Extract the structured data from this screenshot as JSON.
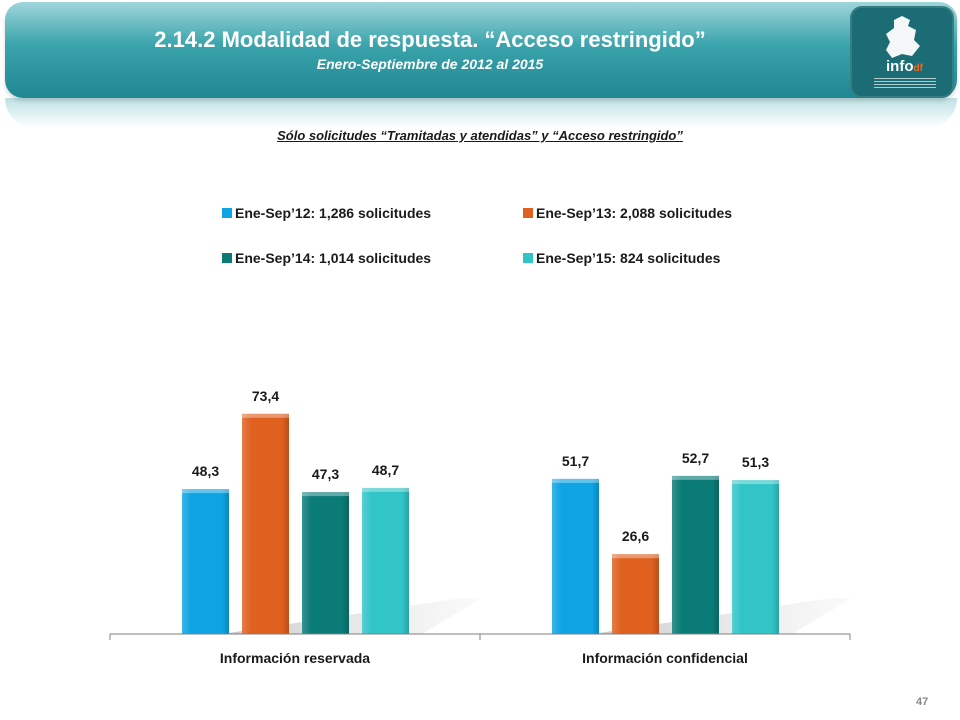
{
  "header": {
    "title": "2.14.2 Modalidad de respuesta. “Acceso restringido”",
    "subtitle": "Enero-Septiembre de 2012 al 2015",
    "logo_text": "info",
    "logo_suffix": "df"
  },
  "chart_subtitle": "Sólo solicitudes “Tramitadas y atendidas” y “Acceso restringido”",
  "legend": [
    {
      "name": "Ene-Sep’12:",
      "value": "1,286 solicitudes",
      "color": "#0ea4e4"
    },
    {
      "name": "Ene-Sep’13:",
      "value": "2,088 solicitudes",
      "color": "#e0601f"
    },
    {
      "name": "Ene-Sep’14:",
      "value": "1,014 solicitudes",
      "color": "#0b7b77"
    },
    {
      "name": "Ene-Sep’15:",
      "value": "824 solicitudes",
      "color": "#32c5c8"
    }
  ],
  "chart_data": {
    "type": "bar",
    "categories": [
      "Información reservada",
      "Información confidencial"
    ],
    "series": [
      {
        "name": "Ene-Sep’12: 1,286 solicitudes",
        "values": [
          48.3,
          51.7
        ],
        "labels": [
          "48,3",
          "51,7"
        ],
        "color": "#0ea4e4"
      },
      {
        "name": "Ene-Sep’13: 2,088 solicitudes",
        "values": [
          73.4,
          26.6
        ],
        "labels": [
          "73,4",
          "26,6"
        ],
        "color": "#e0601f"
      },
      {
        "name": "Ene-Sep’14: 1,014 solicitudes",
        "values": [
          47.3,
          52.7
        ],
        "labels": [
          "47,3",
          "52,7"
        ],
        "color": "#0b7b77"
      },
      {
        "name": "Ene-Sep’15: 824 solicitudes",
        "values": [
          48.7,
          51.3
        ],
        "labels": [
          "48,7",
          "51,3"
        ],
        "color": "#32c5c8"
      }
    ],
    "ylim": [
      0,
      100
    ],
    "grid": false,
    "legend_position": "top"
  },
  "page_number": "47"
}
